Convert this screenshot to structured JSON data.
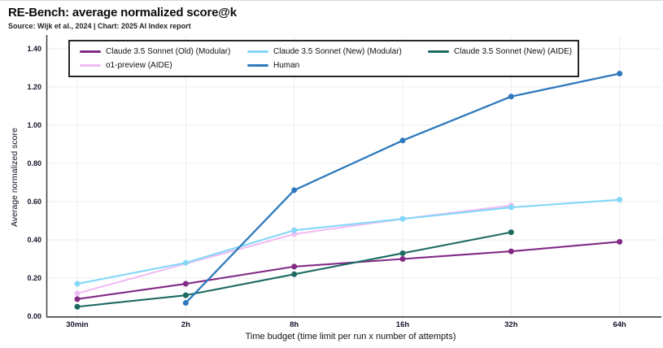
{
  "header": {
    "title": "RE-Bench: average normalized score@k",
    "subtitle": "Source: Wijk et al., 2024 | Chart: 2025 AI Index report"
  },
  "chart_data": {
    "type": "line",
    "title": "RE-Bench: average normalized score@k",
    "xlabel": "Time budget (time limit per run x number of attempts)",
    "ylabel": "Average normalized score",
    "categories": [
      "30min",
      "2h",
      "8h",
      "16h",
      "32h",
      "64h"
    ],
    "yticks": [
      "0.00",
      "0.20",
      "0.40",
      "0.60",
      "0.80",
      "1.00",
      "1.20",
      "1.40"
    ],
    "ylim": [
      0,
      1.4
    ],
    "grid": true,
    "legend_position": "top",
    "series": [
      {
        "name": "Claude 3.5 Sonnet (Old) (Modular)",
        "color": "#822a86",
        "values": [
          0.09,
          0.17,
          0.26,
          0.3,
          0.34,
          0.39
        ]
      },
      {
        "name": "Claude 3.5 Sonnet (New) (Modular)",
        "color": "#83d7f8",
        "values": [
          0.17,
          0.28,
          0.45,
          0.51,
          0.57,
          0.61
        ]
      },
      {
        "name": "Claude 3.5 Sonnet (New) (AIDE)",
        "color": "#1d6a62",
        "values": [
          0.05,
          0.11,
          0.22,
          0.33,
          0.44,
          null
        ]
      },
      {
        "name": "o1-preview (AIDE)",
        "color": "#f1bcf4",
        "values": [
          0.12,
          null,
          0.43,
          0.51,
          0.58,
          null
        ]
      },
      {
        "name": "Human",
        "color": "#2e79bc",
        "values": [
          null,
          0.07,
          0.66,
          0.92,
          1.15,
          1.27
        ]
      }
    ]
  }
}
